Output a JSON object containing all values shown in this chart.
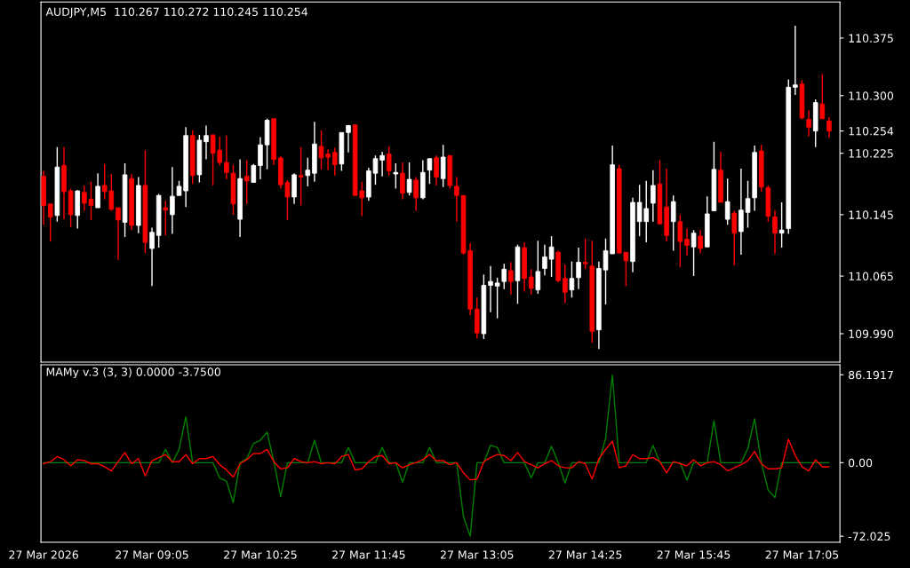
{
  "chart_data": [
    {
      "type": "candlestick",
      "title": "AUDJPY,M5  110.267 110.272 110.245 110.254",
      "x": [
        "2026-03-27T07:45",
        "2026-03-27T07:50",
        "2026-03-27T07:55",
        "2026-03-27T08:00",
        "2026-03-27T08:05",
        "2026-03-27T08:10",
        "2026-03-27T08:15",
        "2026-03-27T08:20",
        "2026-03-27T08:25",
        "2026-03-27T08:30",
        "2026-03-27T08:35",
        "2026-03-27T08:40",
        "2026-03-27T08:45",
        "2026-03-27T08:50",
        "2026-03-27T08:55",
        "2026-03-27T09:00",
        "2026-03-27T09:05",
        "2026-03-27T09:10",
        "2026-03-27T09:15",
        "2026-03-27T09:20",
        "2026-03-27T09:25",
        "2026-03-27T09:30",
        "2026-03-27T09:35",
        "2026-03-27T09:40",
        "2026-03-27T09:45",
        "2026-03-27T09:50",
        "2026-03-27T09:55",
        "2026-03-27T10:00",
        "2026-03-27T10:05",
        "2026-03-27T10:10",
        "2026-03-27T10:15",
        "2026-03-27T10:20",
        "2026-03-27T10:25",
        "2026-03-27T10:30",
        "2026-03-27T10:35",
        "2026-03-27T10:40",
        "2026-03-27T10:45",
        "2026-03-27T10:50",
        "2026-03-27T10:55",
        "2026-03-27T11:00",
        "2026-03-27T11:05",
        "2026-03-27T11:10",
        "2026-03-27T11:15",
        "2026-03-27T11:20",
        "2026-03-27T11:25",
        "2026-03-27T11:30",
        "2026-03-27T11:35",
        "2026-03-27T11:40",
        "2026-03-27T11:45",
        "2026-03-27T11:50",
        "2026-03-27T11:55",
        "2026-03-27T12:00",
        "2026-03-27T12:05",
        "2026-03-27T12:10",
        "2026-03-27T12:15",
        "2026-03-27T12:20",
        "2026-03-27T12:25",
        "2026-03-27T12:30",
        "2026-03-27T12:35",
        "2026-03-27T12:40",
        "2026-03-27T12:45",
        "2026-03-27T12:50",
        "2026-03-27T12:55",
        "2026-03-27T13:00",
        "2026-03-27T13:05",
        "2026-03-27T13:10",
        "2026-03-27T13:15",
        "2026-03-27T13:20",
        "2026-03-27T13:25",
        "2026-03-27T13:30",
        "2026-03-27T13:35",
        "2026-03-27T13:40",
        "2026-03-27T13:45",
        "2026-03-27T13:50",
        "2026-03-27T13:55",
        "2026-03-27T14:00",
        "2026-03-27T14:05",
        "2026-03-27T14:10",
        "2026-03-27T14:15",
        "2026-03-27T14:20",
        "2026-03-27T14:25",
        "2026-03-27T14:30",
        "2026-03-27T14:35",
        "2026-03-27T14:40",
        "2026-03-27T14:45",
        "2026-03-27T14:50",
        "2026-03-27T14:55",
        "2026-03-27T15:00",
        "2026-03-27T15:05",
        "2026-03-27T15:10",
        "2026-03-27T15:15",
        "2026-03-27T15:20",
        "2026-03-27T15:25",
        "2026-03-27T15:30",
        "2026-03-27T15:35",
        "2026-03-27T15:40",
        "2026-03-27T15:45",
        "2026-03-27T15:50",
        "2026-03-27T15:55",
        "2026-03-27T16:00",
        "2026-03-27T16:05",
        "2026-03-27T16:10",
        "2026-03-27T16:15",
        "2026-03-27T16:20",
        "2026-03-27T16:25",
        "2026-03-27T16:30",
        "2026-03-27T16:35",
        "2026-03-27T16:40",
        "2026-03-27T16:45",
        "2026-03-27T16:50",
        "2026-03-27T16:55",
        "2026-03-27T17:00",
        "2026-03-27T17:05",
        "2026-03-27T17:10",
        "2026-03-27T17:15",
        "2026-03-27T17:20",
        "2026-03-27T17:25"
      ],
      "ohlc": [
        [
          110.195,
          110.202,
          110.132,
          110.157
        ],
        [
          110.159,
          110.159,
          110.11,
          110.142
        ],
        [
          110.144,
          110.233,
          110.136,
          110.207
        ],
        [
          110.209,
          110.233,
          110.139,
          110.175
        ],
        [
          110.176,
          110.179,
          110.129,
          110.145
        ],
        [
          110.144,
          110.177,
          110.127,
          110.176
        ],
        [
          110.174,
          110.183,
          110.15,
          110.16
        ],
        [
          110.165,
          110.188,
          110.138,
          110.157
        ],
        [
          110.154,
          110.199,
          110.154,
          110.182
        ],
        [
          110.183,
          110.211,
          110.165,
          110.175
        ],
        [
          110.176,
          110.198,
          110.15,
          110.152
        ],
        [
          110.154,
          110.154,
          110.086,
          110.138
        ],
        [
          110.135,
          110.212,
          110.116,
          110.197
        ],
        [
          110.192,
          110.198,
          110.125,
          110.131
        ],
        [
          110.131,
          110.194,
          110.121,
          110.183
        ],
        [
          110.183,
          110.229,
          110.095,
          110.109
        ],
        [
          110.101,
          110.128,
          110.052,
          110.122
        ],
        [
          110.118,
          110.172,
          110.102,
          110.17
        ],
        [
          110.154,
          110.163,
          110.118,
          110.151
        ],
        [
          110.145,
          110.207,
          110.12,
          110.169
        ],
        [
          110.17,
          110.189,
          110.17,
          110.182
        ],
        [
          110.176,
          110.259,
          110.155,
          110.248
        ],
        [
          110.248,
          110.255,
          110.185,
          110.196
        ],
        [
          110.197,
          110.249,
          110.187,
          110.242
        ],
        [
          110.24,
          110.261,
          110.217,
          110.248
        ],
        [
          110.249,
          110.249,
          110.183,
          110.225
        ],
        [
          110.229,
          110.247,
          110.209,
          110.213
        ],
        [
          110.213,
          110.248,
          110.191,
          110.2
        ],
        [
          110.199,
          110.21,
          110.145,
          110.159
        ],
        [
          110.139,
          110.217,
          110.116,
          110.192
        ],
        [
          110.195,
          110.216,
          110.159,
          110.189
        ],
        [
          110.187,
          110.211,
          110.187,
          110.209
        ],
        [
          110.209,
          110.246,
          110.191,
          110.236
        ],
        [
          110.236,
          110.27,
          110.204,
          110.268
        ],
        [
          110.27,
          110.27,
          110.21,
          110.217
        ],
        [
          110.219,
          110.221,
          110.179,
          110.184
        ],
        [
          110.187,
          110.19,
          110.138,
          110.168
        ],
        [
          110.168,
          110.199,
          110.159,
          110.197
        ],
        [
          110.196,
          110.233,
          110.157,
          110.194
        ],
        [
          110.196,
          110.219,
          110.182,
          110.203
        ],
        [
          110.199,
          110.266,
          110.188,
          110.237
        ],
        [
          110.234,
          110.255,
          110.204,
          110.219
        ],
        [
          110.224,
          110.23,
          110.203,
          110.22
        ],
        [
          110.226,
          110.232,
          110.196,
          110.21
        ],
        [
          110.211,
          110.252,
          110.202,
          110.252
        ],
        [
          110.252,
          110.262,
          110.226,
          110.261
        ],
        [
          110.262,
          110.262,
          110.17,
          110.17
        ],
        [
          110.176,
          110.188,
          110.143,
          110.167
        ],
        [
          110.168,
          110.206,
          110.163,
          110.202
        ],
        [
          110.199,
          110.222,
          110.184,
          110.218
        ],
        [
          110.216,
          110.227,
          110.195,
          110.222
        ],
        [
          110.224,
          110.234,
          110.196,
          110.202
        ],
        [
          110.198,
          110.212,
          110.179,
          110.2
        ],
        [
          110.199,
          110.213,
          110.165,
          110.173
        ],
        [
          110.174,
          110.213,
          110.17,
          110.191
        ],
        [
          110.19,
          110.194,
          110.15,
          110.167
        ],
        [
          110.167,
          110.216,
          110.165,
          110.2
        ],
        [
          110.203,
          110.218,
          110.185,
          110.218
        ],
        [
          110.219,
          110.222,
          110.183,
          110.194
        ],
        [
          110.192,
          110.236,
          110.181,
          110.22
        ],
        [
          110.222,
          110.222,
          110.179,
          110.183
        ],
        [
          110.182,
          110.194,
          110.136,
          110.17
        ],
        [
          110.17,
          110.17,
          110.093,
          110.095
        ],
        [
          110.098,
          110.108,
          110.014,
          110.022
        ],
        [
          110.022,
          110.037,
          109.984,
          109.991
        ],
        [
          109.99,
          110.067,
          109.983,
          110.053
        ],
        [
          110.053,
          110.078,
          110.018,
          110.058
        ],
        [
          110.052,
          110.063,
          110.01,
          110.056
        ],
        [
          110.058,
          110.081,
          110.048,
          110.074
        ],
        [
          110.072,
          110.083,
          110.041,
          110.058
        ],
        [
          110.059,
          110.106,
          110.029,
          110.103
        ],
        [
          110.102,
          110.109,
          110.045,
          110.062
        ],
        [
          110.064,
          110.074,
          110.041,
          110.049
        ],
        [
          110.047,
          110.111,
          110.042,
          110.071
        ],
        [
          110.075,
          110.106,
          110.066,
          110.09
        ],
        [
          110.087,
          110.117,
          110.064,
          110.103
        ],
        [
          110.096,
          110.098,
          110.057,
          110.059
        ],
        [
          110.062,
          110.08,
          110.03,
          110.044
        ],
        [
          110.047,
          110.084,
          110.037,
          110.062
        ],
        [
          110.063,
          110.102,
          110.048,
          110.083
        ],
        [
          110.083,
          110.114,
          110.074,
          110.081
        ],
        [
          110.078,
          110.111,
          109.978,
          109.993
        ],
        [
          109.995,
          110.084,
          109.97,
          110.075
        ],
        [
          110.073,
          110.114,
          110.028,
          110.098
        ],
        [
          110.094,
          110.235,
          110.094,
          110.21
        ],
        [
          110.205,
          110.21,
          110.095,
          110.095
        ],
        [
          110.096,
          110.096,
          110.052,
          110.085
        ],
        [
          110.084,
          110.167,
          110.07,
          110.161
        ],
        [
          110.136,
          110.184,
          110.117,
          110.161
        ],
        [
          110.136,
          110.189,
          110.109,
          110.153
        ],
        [
          110.16,
          110.203,
          110.136,
          110.183
        ],
        [
          110.185,
          110.216,
          110.133,
          110.133
        ],
        [
          110.155,
          110.205,
          110.11,
          110.118
        ],
        [
          110.136,
          110.17,
          110.098,
          110.162
        ],
        [
          110.136,
          110.145,
          110.077,
          110.11
        ],
        [
          110.113,
          110.127,
          110.092,
          110.105
        ],
        [
          110.103,
          110.125,
          110.065,
          110.121
        ],
        [
          110.117,
          110.125,
          110.095,
          110.101
        ],
        [
          110.103,
          110.169,
          110.103,
          110.146
        ],
        [
          110.15,
          110.24,
          110.15,
          110.204
        ],
        [
          110.203,
          110.227,
          110.161,
          110.161
        ],
        [
          110.139,
          110.192,
          110.132,
          110.162
        ],
        [
          110.147,
          110.15,
          110.079,
          110.121
        ],
        [
          110.123,
          110.205,
          110.093,
          110.151
        ],
        [
          110.148,
          110.189,
          110.128,
          110.166
        ],
        [
          110.167,
          110.235,
          110.15,
          110.226
        ],
        [
          110.228,
          110.236,
          110.175,
          110.181
        ],
        [
          110.18,
          110.183,
          110.136,
          110.143
        ],
        [
          110.142,
          110.151,
          110.094,
          110.121
        ],
        [
          110.121,
          110.161,
          110.102,
          110.125
        ],
        [
          110.127,
          110.321,
          110.12,
          110.311
        ],
        [
          110.311,
          110.391,
          110.301,
          110.314
        ],
        [
          110.315,
          110.32,
          110.269,
          110.271
        ],
        [
          110.269,
          110.281,
          110.247,
          110.259
        ],
        [
          110.254,
          110.295,
          110.233,
          110.291
        ],
        [
          110.289,
          110.328,
          110.27,
          110.27
        ],
        [
          110.267,
          110.272,
          110.245,
          110.254
        ]
      ],
      "xlim": [
        "2026-03-27T07:43",
        "2026-03-27T17:33"
      ],
      "ylim": [
        109.953,
        110.422
      ],
      "yticks": [
        110.375,
        {
          "value": 110.3,
          "label": "110.300"
        },
        {
          "value": 110.254,
          "label": "110.254"
        },
        110.225,
        110.145,
        110.065,
        {
          "value": 109.99,
          "label": "109.990"
        }
      ],
      "tick_labels": "y"
    },
    {
      "type": "line",
      "title": "MAMy v.3 (3, 3) 0.0000 -3.7500",
      "x": [
        "2026-03-27T07:45",
        "2026-03-27T07:50",
        "2026-03-27T07:55",
        "2026-03-27T08:00",
        "2026-03-27T08:05",
        "2026-03-27T08:10",
        "2026-03-27T08:15",
        "2026-03-27T08:20",
        "2026-03-27T08:25",
        "2026-03-27T08:30",
        "2026-03-27T08:35",
        "2026-03-27T08:40",
        "2026-03-27T08:45",
        "2026-03-27T08:50",
        "2026-03-27T08:55",
        "2026-03-27T09:00",
        "2026-03-27T09:05",
        "2026-03-27T09:10",
        "2026-03-27T09:15",
        "2026-03-27T09:20",
        "2026-03-27T09:25",
        "2026-03-27T09:30",
        "2026-03-27T09:35",
        "2026-03-27T09:40",
        "2026-03-27T09:45",
        "2026-03-27T09:50",
        "2026-03-27T09:55",
        "2026-03-27T10:00",
        "2026-03-27T10:05",
        "2026-03-27T10:10",
        "2026-03-27T10:15",
        "2026-03-27T10:20",
        "2026-03-27T10:25",
        "2026-03-27T10:30",
        "2026-03-27T10:35",
        "2026-03-27T10:40",
        "2026-03-27T10:45",
        "2026-03-27T10:50",
        "2026-03-27T10:55",
        "2026-03-27T11:00",
        "2026-03-27T11:05",
        "2026-03-27T11:10",
        "2026-03-27T11:15",
        "2026-03-27T11:20",
        "2026-03-27T11:25",
        "2026-03-27T11:30",
        "2026-03-27T11:35",
        "2026-03-27T11:40",
        "2026-03-27T11:45",
        "2026-03-27T11:50",
        "2026-03-27T11:55",
        "2026-03-27T12:00",
        "2026-03-27T12:05",
        "2026-03-27T12:10",
        "2026-03-27T12:15",
        "2026-03-27T12:20",
        "2026-03-27T12:25",
        "2026-03-27T12:30",
        "2026-03-27T12:35",
        "2026-03-27T12:40",
        "2026-03-27T12:45",
        "2026-03-27T12:50",
        "2026-03-27T12:55",
        "2026-03-27T13:00",
        "2026-03-27T13:05",
        "2026-03-27T13:10",
        "2026-03-27T13:15",
        "2026-03-27T13:20",
        "2026-03-27T13:25",
        "2026-03-27T13:30",
        "2026-03-27T13:35",
        "2026-03-27T13:40",
        "2026-03-27T13:45",
        "2026-03-27T13:50",
        "2026-03-27T13:55",
        "2026-03-27T14:00",
        "2026-03-27T14:05",
        "2026-03-27T14:10",
        "2026-03-27T14:15",
        "2026-03-27T14:20",
        "2026-03-27T14:25",
        "2026-03-27T14:30",
        "2026-03-27T14:35",
        "2026-03-27T14:40",
        "2026-03-27T14:45",
        "2026-03-27T14:50",
        "2026-03-27T14:55",
        "2026-03-27T15:00",
        "2026-03-27T15:05",
        "2026-03-27T15:10",
        "2026-03-27T15:15",
        "2026-03-27T15:20",
        "2026-03-27T15:25",
        "2026-03-27T15:30",
        "2026-03-27T15:35",
        "2026-03-27T15:40",
        "2026-03-27T15:45",
        "2026-03-27T15:50",
        "2026-03-27T15:55",
        "2026-03-27T16:00",
        "2026-03-27T16:05",
        "2026-03-27T16:10",
        "2026-03-27T16:15",
        "2026-03-27T16:20",
        "2026-03-27T16:25",
        "2026-03-27T16:30",
        "2026-03-27T16:35",
        "2026-03-27T16:40",
        "2026-03-27T16:45",
        "2026-03-27T16:50",
        "2026-03-27T16:55",
        "2026-03-27T17:00",
        "2026-03-27T17:05",
        "2026-03-27T17:10",
        "2026-03-27T17:15",
        "2026-03-27T17:20",
        "2026-03-27T17:25"
      ],
      "series": [
        {
          "color": "#008000",
          "values": [
            0,
            0,
            0,
            0,
            0,
            0,
            0,
            0,
            0,
            0,
            0,
            0,
            0,
            0,
            0,
            0,
            0,
            0,
            13,
            0,
            13,
            45,
            0,
            0,
            0,
            0,
            -15,
            -18,
            -39,
            0,
            4,
            19,
            22,
            30,
            1,
            -33,
            0,
            0,
            0,
            0,
            22,
            0,
            0,
            0,
            0,
            15,
            0,
            0,
            0,
            0,
            15,
            0,
            0,
            -19,
            0,
            0,
            0,
            15,
            0,
            0,
            0,
            0,
            -53,
            -72,
            0,
            0,
            17,
            15,
            0,
            0,
            0,
            0,
            -15,
            0,
            0,
            16,
            0,
            -20,
            0,
            0,
            0,
            0,
            0,
            24,
            86,
            0,
            0,
            0,
            0,
            0,
            17,
            0,
            0,
            0,
            0,
            -17,
            0,
            0,
            0,
            41,
            0,
            0,
            0,
            0,
            14,
            43,
            0,
            -27,
            -34,
            0,
            0,
            0,
            0,
            0,
            0,
            0,
            0
          ]
        },
        {
          "color": "#ff0000",
          "values": [
            -1,
            1,
            6,
            3,
            -3,
            3,
            2,
            -1,
            -1,
            -4,
            -8,
            1,
            10,
            -1,
            4,
            -13,
            2,
            5,
            8,
            1,
            1,
            8,
            -1,
            4,
            4,
            6,
            -2,
            -7,
            -14,
            -1,
            3,
            9,
            9,
            13,
            1,
            -6,
            -5,
            4,
            1,
            0,
            1,
            -1,
            0,
            -1,
            6,
            8,
            -7,
            -6,
            1,
            6,
            7,
            -1,
            0,
            -5,
            -2,
            0,
            3,
            8,
            2,
            2,
            -2,
            0,
            -10,
            -17,
            -16,
            1,
            5,
            8,
            7,
            2,
            10,
            1,
            -2,
            -5,
            -1,
            2,
            -3,
            -5,
            -5,
            1,
            -1,
            -16,
            4,
            13,
            21,
            -5,
            -3,
            8,
            4,
            4,
            5,
            1,
            -10,
            1,
            -1,
            -3,
            3,
            -3,
            0,
            1,
            -2,
            -8,
            -5,
            -2,
            2,
            11,
            -1,
            -6,
            -6,
            -5,
            23,
            7,
            -4,
            -8,
            3,
            -4,
            -4
          ]
        }
      ],
      "xlim": [
        "2026-03-27T07:43",
        "2026-03-27T17:33"
      ],
      "xticks": [
        {
          "value": "2026-03-27T07:45",
          "label": "27 Mar 2026"
        },
        {
          "value": "2026-03-27T09:05",
          "label": "27 Mar 09:05"
        },
        {
          "value": "2026-03-27T10:25",
          "label": "27 Mar 10:25"
        },
        {
          "value": "2026-03-27T11:45",
          "label": "27 Mar 11:45"
        },
        {
          "value": "2026-03-27T13:05",
          "label": "27 Mar 13:05"
        },
        {
          "value": "2026-03-27T14:25",
          "label": "27 Mar 14:25"
        },
        {
          "value": "2026-03-27T15:45",
          "label": "27 Mar 15:45"
        },
        {
          "value": "2026-03-27T17:05",
          "label": "27 Mar 17:05"
        }
      ],
      "ylim": [
        -78,
        96
      ],
      "yticks": [
        86.1917,
        {
          "value": 0,
          "label": "0.00"
        },
        -72.025
      ]
    }
  ]
}
